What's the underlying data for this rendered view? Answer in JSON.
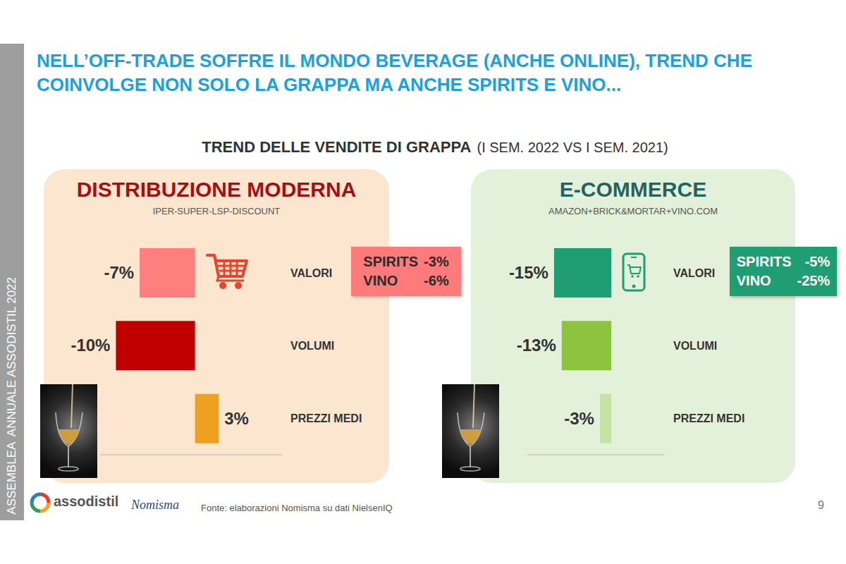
{
  "header": {
    "title": "NELL’OFF-TRADE SOFFRE IL MONDO BEVERAGE (ANCHE ONLINE), TREND CHE COINVOLGE NON SOLO LA GRAPPA MA ANCHE SPIRITS E VINO...",
    "sidebar": "ASSEMBLEA  ANNUALE ASSODISTIL 2022"
  },
  "section": {
    "title": "TREND DELLE VENDITE DI GRAPPA",
    "period": "(I SEM. 2022 VS I SEM. 2021)"
  },
  "chart_data": [
    {
      "type": "bar",
      "orientation": "horizontal",
      "title": "DISTRIBUZIONE MODERNA",
      "subtitle": "IPER-SUPER-LSP-DISCOUNT",
      "categories": [
        "VALORI",
        "VOLUMI",
        "PREZZI MEDI"
      ],
      "values": [
        -7,
        -10,
        3
      ],
      "value_labels": [
        "-7%",
        "-10%",
        "3%"
      ],
      "colors": [
        "#ff7f7f",
        "#c00000",
        "#f0a020"
      ],
      "xlim": [
        -12,
        11
      ],
      "xticks": [
        0
      ],
      "tick_labels": "y",
      "data_labels": true,
      "annotations": [
        {
          "text": "SPIRITS",
          "label": "-3%"
        },
        {
          "text": "VINO",
          "label": "-6%"
        }
      ]
    },
    {
      "type": "bar",
      "orientation": "horizontal",
      "title": "E-COMMERCE",
      "subtitle": "AMAZON+BRICK&MORTAR+VINO.COM",
      "categories": [
        "VALORI",
        "VOLUMI",
        "PREZZI MEDI"
      ],
      "values": [
        -15,
        -13,
        -3
      ],
      "value_labels": [
        "-15%",
        "-13%",
        "-3%"
      ],
      "colors": [
        "#1e9e72",
        "#8cc43f",
        "#c5e3a5"
      ],
      "xlim": [
        -22,
        14
      ],
      "xticks": [
        0
      ],
      "tick_labels": "y",
      "data_labels": true,
      "annotations": [
        {
          "text": "SPIRITS",
          "label": "-5%"
        },
        {
          "text": "VINO",
          "label": "-25%"
        }
      ]
    }
  ],
  "footer": {
    "source": "Fonte: elaborazioni Nomisma su dati NielsenIQ",
    "logos": [
      "assodistil",
      "Nomisma"
    ],
    "page": 9
  }
}
